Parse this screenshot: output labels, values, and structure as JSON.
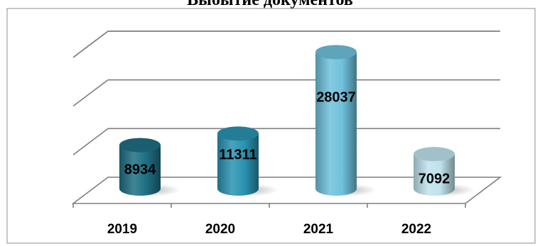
{
  "chart_data": {
    "type": "bar",
    "title": "Выбытие документов",
    "categories": [
      "2019",
      "2020",
      "2021",
      "2022"
    ],
    "values": [
      8934,
      11311,
      28037,
      7092
    ],
    "bar_colors": [
      "#1e6f84",
      "#2a93b1",
      "#6fc1dc",
      "#bfe2ec"
    ],
    "ylim": [
      0,
      30000
    ],
    "grid": true,
    "legend": "none",
    "style": "3d-cylinder"
  }
}
